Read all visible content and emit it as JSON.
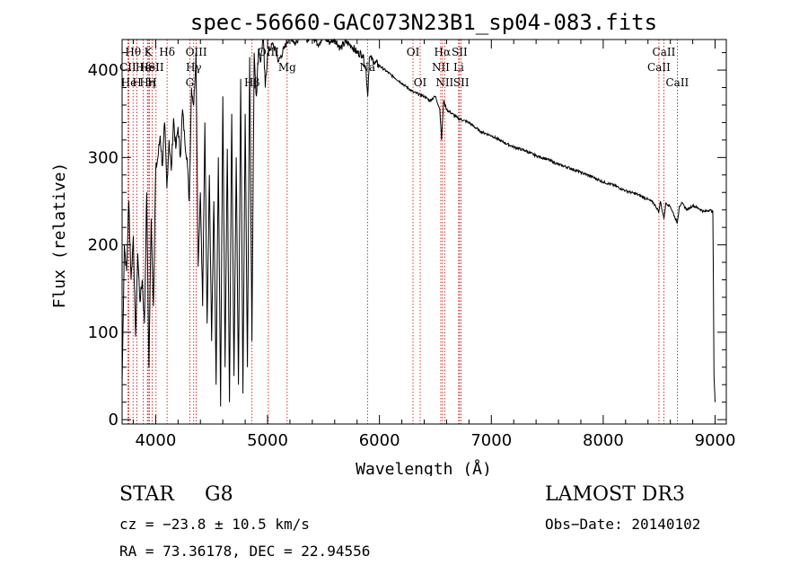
{
  "chart_data": {
    "type": "line",
    "title": "spec-56660-GAC073N23B1_sp04-083.fits",
    "xlabel": "Wavelength (Å)",
    "ylabel": "Flux (relative)",
    "xlim": [
      3700,
      9100
    ],
    "ylim": [
      -5,
      435
    ],
    "x_ticks": [
      4000,
      5000,
      6000,
      7000,
      8000,
      9000
    ],
    "y_ticks": [
      0,
      100,
      200,
      300,
      400
    ],
    "grid": false,
    "series": [
      {
        "name": "flux",
        "x": [
          3700,
          3720,
          3740,
          3760,
          3780,
          3800,
          3820,
          3840,
          3860,
          3880,
          3900,
          3920,
          3940,
          3960,
          3980,
          4000,
          4020,
          4040,
          4060,
          4080,
          4100,
          4120,
          4140,
          4160,
          4180,
          4200,
          4220,
          4240,
          4260,
          4280,
          4300,
          4320,
          4340,
          4360,
          4380,
          4400,
          4420,
          4440,
          4460,
          4480,
          4500,
          4520,
          4540,
          4560,
          4580,
          4600,
          4620,
          4640,
          4660,
          4680,
          4700,
          4720,
          4740,
          4760,
          4780,
          4800,
          4820,
          4840,
          4860,
          4880,
          4900,
          4920,
          4940,
          4960,
          4980,
          5000,
          5050,
          5100,
          5150,
          5200,
          5250,
          5300,
          5350,
          5400,
          5450,
          5500,
          5550,
          5600,
          5650,
          5700,
          5750,
          5800,
          5850,
          5880,
          5895,
          5910,
          5950,
          6000,
          6100,
          6200,
          6300,
          6400,
          6450,
          6500,
          6540,
          6555,
          6563,
          6575,
          6600,
          6700,
          6800,
          6900,
          7000,
          7100,
          7200,
          7300,
          7400,
          7500,
          7600,
          7700,
          7800,
          7900,
          8000,
          8100,
          8200,
          8300,
          8400,
          8450,
          8498,
          8510,
          8542,
          8560,
          8600,
          8662,
          8680,
          8700,
          8750,
          8800,
          8850,
          8900,
          8950,
          8980,
          8990,
          9000
        ],
        "y": [
          40,
          200,
          170,
          250,
          160,
          210,
          95,
          190,
          135,
          160,
          110,
          260,
          60,
          230,
          130,
          285,
          300,
          325,
          290,
          340,
          265,
          320,
          285,
          345,
          310,
          335,
          300,
          355,
          320,
          300,
          250,
          380,
          360,
          420,
          175,
          260,
          130,
          340,
          110,
          280,
          90,
          250,
          40,
          300,
          15,
          370,
          60,
          310,
          20,
          350,
          50,
          300,
          40,
          390,
          30,
          350,
          60,
          415,
          90,
          420,
          370,
          425,
          410,
          440,
          380,
          420,
          430,
          410,
          425,
          440,
          430,
          445,
          435,
          440,
          430,
          438,
          432,
          436,
          425,
          432,
          428,
          420,
          418,
          400,
          370,
          415,
          410,
          405,
          395,
          385,
          375,
          370,
          365,
          370,
          355,
          320,
          340,
          365,
          355,
          345,
          340,
          330,
          325,
          318,
          312,
          308,
          302,
          298,
          292,
          288,
          283,
          278,
          272,
          268,
          262,
          258,
          252,
          248,
          238,
          250,
          230,
          248,
          244,
          225,
          244,
          248,
          240,
          245,
          242,
          238,
          240,
          238,
          50,
          20
        ]
      }
    ],
    "line_markers": [
      {
        "label": "Hθ",
        "x": 3798,
        "row": 0
      },
      {
        "label": "CII",
        "x": 3751,
        "row": 1
      },
      {
        "label": "He",
        "x": 3760,
        "row": 2
      },
      {
        "label": "H",
        "x": 3833,
        "row": 2
      },
      {
        "label": "He",
        "x": 3889,
        "row": 1
      },
      {
        "label": "K",
        "x": 3934,
        "row": 0
      },
      {
        "label": "HeI",
        "x": 3945,
        "row": 1
      },
      {
        "label": "SII",
        "x": 4003,
        "row": 1
      },
      {
        "label": "Hη",
        "x": 3926,
        "row": 2
      },
      {
        "label": "H",
        "x": 3968,
        "row": 2
      },
      {
        "label": "Hδ",
        "x": 4102,
        "row": 0
      },
      {
        "label": "OIII",
        "x": 4363,
        "row": 0
      },
      {
        "label": "Hγ",
        "x": 4340,
        "row": 1
      },
      {
        "label": "G",
        "x": 4305,
        "row": 2
      },
      {
        "label": "Hβ",
        "x": 4861,
        "row": 2
      },
      {
        "label": "OIII",
        "x": 5007,
        "row": 0
      },
      {
        "label": "Mg",
        "x": 5175,
        "row": 1
      },
      {
        "label": "Na",
        "x": 5893,
        "row": 1
      },
      {
        "label": "OI",
        "x": 6300,
        "row": 0
      },
      {
        "label": "OI",
        "x": 6364,
        "row": 2
      },
      {
        "label": "Hα",
        "x": 6563,
        "row": 0
      },
      {
        "label": "NII",
        "x": 6548,
        "row": 1
      },
      {
        "label": "NII",
        "x": 6583,
        "row": 2
      },
      {
        "label": "SII",
        "x": 6716,
        "row": 0
      },
      {
        "label": "Li",
        "x": 6708,
        "row": 1
      },
      {
        "label": "SII",
        "x": 6731,
        "row": 2
      },
      {
        "label": "CaII",
        "x": 8542,
        "row": 0
      },
      {
        "label": "CaII",
        "x": 8498,
        "row": 1
      },
      {
        "label": "CaII",
        "x": 8662,
        "row": 2
      }
    ]
  },
  "info": {
    "object_class": "STAR",
    "subclass": "G8",
    "survey": "LAMOST DR3",
    "cz": "cz = −23.8 ± 10.5 km/s",
    "obs_date": "Obs−Date: 20140102",
    "coords": "RA =  73.36178, DEC =  22.94556"
  },
  "colors": {
    "line": "#000000",
    "marker": "#cc0000",
    "background": "#ffffff"
  }
}
